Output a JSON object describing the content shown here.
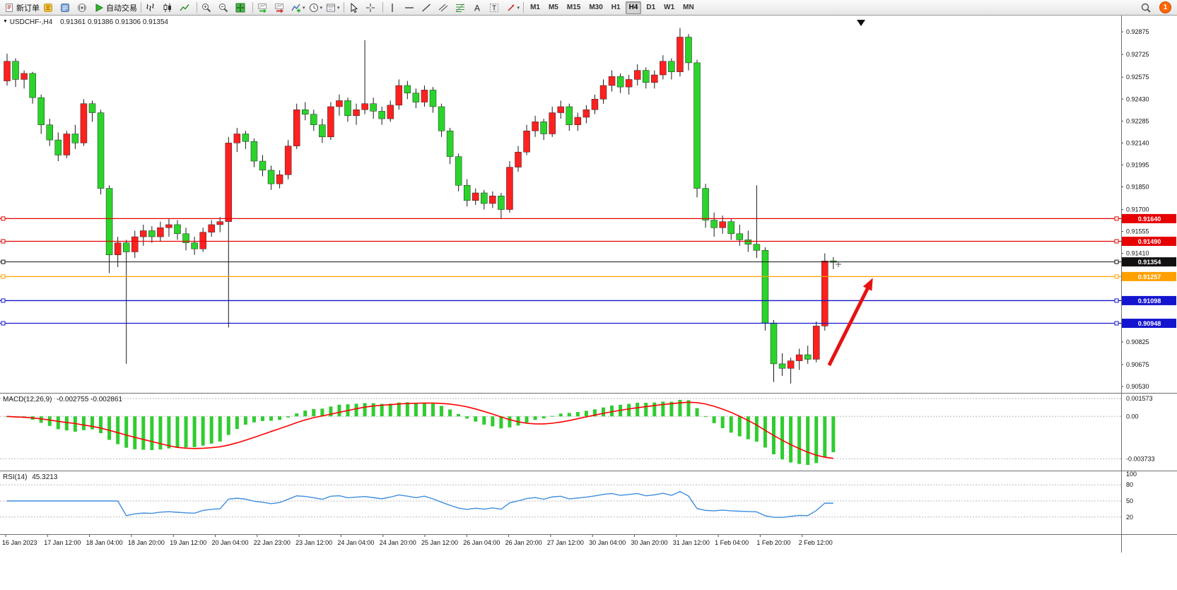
{
  "toolbar": {
    "buttons": [
      {
        "type": "button",
        "name": "new-order",
        "icon": "new-order",
        "label": "新订单"
      },
      {
        "type": "button",
        "name": "metaeditor",
        "icon": "metaeditor"
      },
      {
        "type": "button",
        "name": "terminal",
        "icon": "terminal"
      },
      {
        "type": "button",
        "name": "news",
        "icon": "broadcast"
      },
      {
        "type": "button",
        "name": "autotrading",
        "icon": "autotrading",
        "label": "自动交易"
      },
      {
        "type": "separator"
      },
      {
        "type": "button",
        "name": "bar-chart",
        "icon": "bars"
      },
      {
        "type": "button",
        "name": "candlestick-chart",
        "icon": "candles"
      },
      {
        "type": "button",
        "name": "line-chart",
        "icon": "line"
      },
      {
        "type": "separator"
      },
      {
        "type": "button",
        "name": "zoom-in",
        "icon": "zoom-in"
      },
      {
        "type": "button",
        "name": "zoom-out",
        "icon": "zoom-out"
      },
      {
        "type": "button",
        "name": "tile-windows",
        "icon": "tile"
      },
      {
        "type": "separator"
      },
      {
        "type": "button",
        "name": "auto-scroll",
        "icon": "auto-scroll"
      },
      {
        "type": "button",
        "name": "chart-shift",
        "icon": "chart-shift"
      },
      {
        "type": "button",
        "name": "indicators",
        "icon": "indicator-add",
        "caret": true
      },
      {
        "type": "button",
        "name": "periods",
        "icon": "clock",
        "caret": true
      },
      {
        "type": "button",
        "name": "templates",
        "icon": "template",
        "caret": true
      },
      {
        "type": "separator"
      },
      {
        "type": "button",
        "name": "cursor",
        "icon": "cursor"
      },
      {
        "type": "button",
        "name": "crosshair",
        "icon": "crosshair"
      },
      {
        "type": "separator"
      },
      {
        "type": "button",
        "name": "vertical-line",
        "icon": "vline"
      },
      {
        "type": "button",
        "name": "horizontal-line",
        "icon": "hline"
      },
      {
        "type": "button",
        "name": "trendline",
        "icon": "trendline"
      },
      {
        "type": "button",
        "name": "equidistant-channel",
        "icon": "channel"
      },
      {
        "type": "button",
        "name": "fibonacci",
        "icon": "fibonacci"
      },
      {
        "type": "button",
        "name": "text",
        "icon": "text"
      },
      {
        "type": "button",
        "name": "label",
        "icon": "label"
      },
      {
        "type": "button",
        "name": "arrows",
        "icon": "arrow-objects",
        "caret": true
      },
      {
        "type": "separator"
      }
    ],
    "timeframes": [
      "M1",
      "M5",
      "M15",
      "M30",
      "H1",
      "H4",
      "D1",
      "W1",
      "MN"
    ],
    "active_timeframe": "H4",
    "notification_count": "1"
  },
  "chart": {
    "symbol_text": "USDCHF-,H4",
    "ohlc_text": "0.91361 0.91386 0.91306 0.91354",
    "colors": {
      "bull_candle": "#ff2020",
      "bear_candle": "#2bd42b",
      "wick": "#1a1a1a"
    },
    "price_ticks": [
      "0.92875",
      "0.92725",
      "0.92575",
      "0.92430",
      "0.92285",
      "0.92140",
      "0.91995",
      "0.91850",
      "0.91700",
      "0.91555",
      "0.91410",
      "0.90825",
      "0.90675",
      "0.90530"
    ],
    "levels": [
      {
        "price": 0.9164,
        "label": "0.91640",
        "color": "#e60000",
        "type": "resistance"
      },
      {
        "price": 0.9149,
        "label": "0.91490",
        "color": "#e60000",
        "type": "resistance"
      },
      {
        "price": 0.91354,
        "label": "0.91354",
        "color": "#111111",
        "type": "current-price"
      },
      {
        "price": 0.91257,
        "label": "0.91257",
        "color": "#ffa000",
        "type": "level"
      },
      {
        "price": 0.91098,
        "label": "0.91098",
        "color": "#1515cf",
        "type": "support"
      },
      {
        "price": 0.90948,
        "label": "0.90948",
        "color": "#1515cf",
        "type": "support"
      }
    ],
    "time_labels": [
      "16 Jan 2023",
      "17 Jan 12:00",
      "18 Jan 04:00",
      "18 Jan 20:00",
      "19 Jan 12:00",
      "20 Jan 04:00",
      "22 Jan 23:00",
      "23 Jan 12:00",
      "24 Jan 04:00",
      "24 Jan 20:00",
      "25 Jan 12:00",
      "26 Jan 04:00",
      "26 Jan 20:00",
      "27 Jan 12:00",
      "30 Jan 04:00",
      "30 Jan 20:00",
      "31 Jan 12:00",
      "1 Feb 04:00",
      "1 Feb 20:00",
      "2 Feb 12:00"
    ]
  },
  "macd": {
    "name": "MACD(12,26,9)",
    "values": "-0.002755 -0.002861",
    "axis": [
      "0.001573",
      "0.00",
      "-0.003733"
    ],
    "histogram_color": "#30cc30",
    "signal_color": "#ff0000"
  },
  "rsi": {
    "name": "RSI(14)",
    "value": "45.3213",
    "axis": [
      "100",
      "80",
      "50",
      "20"
    ],
    "levels": [
      80,
      50,
      20
    ],
    "line_color": "#3e8ede"
  },
  "chart_data": {
    "type": "candlestick",
    "symbol": "USDCHF",
    "timeframe": "H4",
    "current_bar": {
      "open": 0.91361,
      "high": 0.91386,
      "low": 0.91306,
      "close": 0.91354
    },
    "ylim": [
      0.9049,
      0.9293
    ],
    "candles": [
      [
        0.9255,
        0.9273,
        0.9252,
        0.9268
      ],
      [
        0.9268,
        0.927,
        0.9251,
        0.9256
      ],
      [
        0.9256,
        0.9262,
        0.925,
        0.926
      ],
      [
        0.926,
        0.9261,
        0.924,
        0.9244
      ],
      [
        0.9244,
        0.9246,
        0.922,
        0.9226
      ],
      [
        0.9226,
        0.923,
        0.9212,
        0.9216
      ],
      [
        0.9216,
        0.9221,
        0.9202,
        0.9206
      ],
      [
        0.9206,
        0.9222,
        0.9204,
        0.922
      ],
      [
        0.922,
        0.9226,
        0.921,
        0.9214
      ],
      [
        0.9214,
        0.9243,
        0.9212,
        0.924
      ],
      [
        0.924,
        0.9242,
        0.9228,
        0.9234
      ],
      [
        0.9234,
        0.9236,
        0.918,
        0.9184
      ],
      [
        0.9184,
        0.9186,
        0.9128,
        0.914
      ],
      [
        0.914,
        0.9152,
        0.9132,
        0.9148
      ],
      [
        0.9148,
        0.915,
        0.9068,
        0.9142
      ],
      [
        0.9142,
        0.9156,
        0.9138,
        0.9152
      ],
      [
        0.9152,
        0.916,
        0.9146,
        0.9156
      ],
      [
        0.9156,
        0.9159,
        0.9148,
        0.9152
      ],
      [
        0.9152,
        0.9162,
        0.9149,
        0.9158
      ],
      [
        0.9158,
        0.9164,
        0.9152,
        0.916
      ],
      [
        0.916,
        0.9163,
        0.915,
        0.9154
      ],
      [
        0.9154,
        0.9158,
        0.9143,
        0.9148
      ],
      [
        0.9148,
        0.9152,
        0.914,
        0.9144
      ],
      [
        0.9144,
        0.9158,
        0.9142,
        0.9155
      ],
      [
        0.9155,
        0.9163,
        0.9152,
        0.916
      ],
      [
        0.916,
        0.9165,
        0.9155,
        0.9162
      ],
      [
        0.9162,
        0.9218,
        0.9092,
        0.9214
      ],
      [
        0.9214,
        0.9224,
        0.9208,
        0.922
      ],
      [
        0.922,
        0.9222,
        0.921,
        0.9215
      ],
      [
        0.9215,
        0.9217,
        0.9198,
        0.9202
      ],
      [
        0.9202,
        0.9206,
        0.9192,
        0.9196
      ],
      [
        0.9196,
        0.9199,
        0.9183,
        0.9187
      ],
      [
        0.9187,
        0.9196,
        0.9184,
        0.9193
      ],
      [
        0.9193,
        0.9216,
        0.919,
        0.9212
      ],
      [
        0.9212,
        0.924,
        0.921,
        0.9236
      ],
      [
        0.9236,
        0.9241,
        0.9229,
        0.9233
      ],
      [
        0.9233,
        0.9236,
        0.9222,
        0.9226
      ],
      [
        0.9226,
        0.923,
        0.9214,
        0.9218
      ],
      [
        0.9218,
        0.9241,
        0.9216,
        0.9238
      ],
      [
        0.9238,
        0.9246,
        0.9232,
        0.9242
      ],
      [
        0.9242,
        0.9244,
        0.9228,
        0.9232
      ],
      [
        0.9232,
        0.924,
        0.9226,
        0.9236
      ],
      [
        0.9236,
        0.9282,
        0.9233,
        0.924
      ],
      [
        0.924,
        0.9244,
        0.923,
        0.9235
      ],
      [
        0.9235,
        0.9238,
        0.9226,
        0.923
      ],
      [
        0.923,
        0.9242,
        0.9228,
        0.9239
      ],
      [
        0.9239,
        0.9256,
        0.9236,
        0.9252
      ],
      [
        0.9252,
        0.9255,
        0.9243,
        0.9247
      ],
      [
        0.9247,
        0.925,
        0.9237,
        0.9241
      ],
      [
        0.9241,
        0.9252,
        0.9238,
        0.9249
      ],
      [
        0.9249,
        0.9251,
        0.9234,
        0.9238
      ],
      [
        0.9238,
        0.924,
        0.9218,
        0.9222
      ],
      [
        0.9222,
        0.9224,
        0.92,
        0.9205
      ],
      [
        0.9205,
        0.9207,
        0.9182,
        0.9186
      ],
      [
        0.9186,
        0.919,
        0.9172,
        0.9176
      ],
      [
        0.9176,
        0.9184,
        0.9173,
        0.9181
      ],
      [
        0.9181,
        0.9183,
        0.917,
        0.9174
      ],
      [
        0.9174,
        0.9182,
        0.9171,
        0.9179
      ],
      [
        0.9179,
        0.9181,
        0.9164,
        0.917
      ],
      [
        0.917,
        0.9202,
        0.9168,
        0.9198
      ],
      [
        0.9198,
        0.9212,
        0.9195,
        0.9208
      ],
      [
        0.9208,
        0.9226,
        0.9206,
        0.9222
      ],
      [
        0.9222,
        0.9232,
        0.9218,
        0.9228
      ],
      [
        0.9228,
        0.923,
        0.9216,
        0.922
      ],
      [
        0.922,
        0.9238,
        0.9218,
        0.9234
      ],
      [
        0.9234,
        0.9242,
        0.923,
        0.9238
      ],
      [
        0.9238,
        0.924,
        0.9222,
        0.9226
      ],
      [
        0.9226,
        0.9234,
        0.9222,
        0.9231
      ],
      [
        0.9231,
        0.9239,
        0.9227,
        0.9236
      ],
      [
        0.9236,
        0.9246,
        0.9233,
        0.9243
      ],
      [
        0.9243,
        0.9256,
        0.924,
        0.9252
      ],
      [
        0.9252,
        0.9262,
        0.9248,
        0.9258
      ],
      [
        0.9258,
        0.926,
        0.9247,
        0.9251
      ],
      [
        0.9251,
        0.9259,
        0.9246,
        0.9256
      ],
      [
        0.9256,
        0.9266,
        0.9252,
        0.9262
      ],
      [
        0.9262,
        0.9264,
        0.925,
        0.9254
      ],
      [
        0.9254,
        0.9262,
        0.925,
        0.9259
      ],
      [
        0.9259,
        0.9272,
        0.9256,
        0.9268
      ],
      [
        0.9268,
        0.927,
        0.9256,
        0.9261
      ],
      [
        0.9261,
        0.929,
        0.9258,
        0.9284
      ],
      [
        0.9284,
        0.9286,
        0.9262,
        0.9267
      ],
      [
        0.9267,
        0.9269,
        0.9178,
        0.9184
      ],
      [
        0.9184,
        0.9187,
        0.9158,
        0.9163
      ],
      [
        0.9163,
        0.9168,
        0.9152,
        0.9158
      ],
      [
        0.9158,
        0.9166,
        0.9154,
        0.9162
      ],
      [
        0.9162,
        0.9164,
        0.915,
        0.9154
      ],
      [
        0.9154,
        0.916,
        0.9146,
        0.915
      ],
      [
        0.915,
        0.9156,
        0.9142,
        0.9147
      ],
      [
        0.9147,
        0.9186,
        0.9138,
        0.9143
      ],
      [
        0.9143,
        0.9145,
        0.909,
        0.9095
      ],
      [
        0.9095,
        0.9097,
        0.9056,
        0.9068
      ],
      [
        0.9068,
        0.9075,
        0.906,
        0.9065
      ],
      [
        0.9065,
        0.9072,
        0.9055,
        0.907
      ],
      [
        0.907,
        0.9078,
        0.9064,
        0.9074
      ],
      [
        0.9074,
        0.908,
        0.9068,
        0.9071
      ],
      [
        0.9071,
        0.9096,
        0.9069,
        0.9093
      ],
      [
        0.9093,
        0.9141,
        0.909,
        0.9136
      ],
      [
        0.91361,
        0.91386,
        0.91306,
        0.91354
      ]
    ],
    "indicators": [
      {
        "type": "macd",
        "params": [
          12,
          26,
          9
        ],
        "current": [
          -0.002755,
          -0.002861
        ],
        "axis_range": [
          -0.003733,
          0.001573
        ]
      },
      {
        "type": "rsi",
        "params": [
          14
        ],
        "current": 45.3213,
        "levels": [
          80,
          50,
          20
        ]
      }
    ],
    "annotations": [
      {
        "type": "arrow",
        "color": "#e51212",
        "from": {
          "index": 96.5,
          "price": 0.9067
        },
        "to": {
          "index": 101.3,
          "price": 0.9121
        }
      }
    ]
  }
}
